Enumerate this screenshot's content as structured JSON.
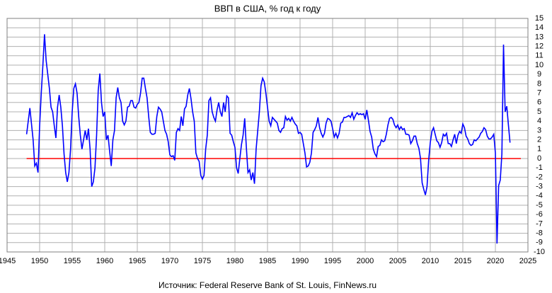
{
  "chart_data": {
    "type": "line",
    "title": "ВВП в США, % год к году",
    "source": "Источник: Federal Reserve Bank of St. Louis, FinNews.ru",
    "xlim": [
      1945,
      2025
    ],
    "xticks": [
      1945,
      1950,
      1955,
      1960,
      1965,
      1970,
      1975,
      1980,
      1985,
      1990,
      1995,
      2000,
      2005,
      2010,
      2015,
      2020,
      2025
    ],
    "ylim": [
      -10,
      15
    ],
    "yticks": [
      -10,
      -9,
      -8,
      -7,
      -6,
      -5,
      -4,
      -3,
      -2,
      -1,
      0,
      1,
      2,
      3,
      4,
      5,
      6,
      7,
      8,
      9,
      10,
      11,
      12,
      13,
      14,
      15
    ],
    "negative_tick_color": "#ff0000",
    "grid": true,
    "hline": {
      "value": 0,
      "color": "#ff0000"
    },
    "x": [
      1948,
      1948.5,
      1949,
      1949.25,
      1949.5,
      1949.75,
      1950,
      1950.25,
      1950.5,
      1950.75,
      1951,
      1951.25,
      1951.5,
      1951.75,
      1952,
      1952.25,
      1952.5,
      1952.75,
      1953,
      1953.25,
      1953.5,
      1953.75,
      1954,
      1954.25,
      1954.5,
      1954.75,
      1955,
      1955.25,
      1955.5,
      1955.75,
      1956,
      1956.25,
      1956.5,
      1956.75,
      1957,
      1957.25,
      1957.5,
      1957.75,
      1958,
      1958.25,
      1958.5,
      1958.75,
      1959,
      1959.25,
      1959.5,
      1959.75,
      1960,
      1960.25,
      1960.5,
      1960.75,
      1961,
      1961.25,
      1961.5,
      1961.75,
      1962,
      1962.25,
      1962.5,
      1962.75,
      1963,
      1963.25,
      1963.5,
      1963.75,
      1964,
      1964.25,
      1964.5,
      1964.75,
      1965,
      1965.25,
      1965.5,
      1965.75,
      1966,
      1966.25,
      1966.5,
      1966.75,
      1967,
      1967.25,
      1967.5,
      1967.75,
      1968,
      1968.25,
      1968.5,
      1968.75,
      1969,
      1969.25,
      1969.5,
      1969.75,
      1970,
      1970.25,
      1970.5,
      1970.75,
      1971,
      1971.25,
      1971.5,
      1971.75,
      1972,
      1972.25,
      1972.5,
      1972.75,
      1973,
      1973.25,
      1973.5,
      1973.75,
      1974,
      1974.25,
      1974.5,
      1974.75,
      1975,
      1975.25,
      1975.5,
      1975.75,
      1976,
      1976.25,
      1976.5,
      1976.75,
      1977,
      1977.25,
      1977.5,
      1977.75,
      1978,
      1978.25,
      1978.5,
      1978.75,
      1979,
      1979.25,
      1979.5,
      1979.75,
      1980,
      1980.25,
      1980.5,
      1980.75,
      1981,
      1981.25,
      1981.5,
      1981.75,
      1982,
      1982.25,
      1982.5,
      1982.75,
      1983,
      1983.25,
      1983.5,
      1983.75,
      1984,
      1984.25,
      1984.5,
      1984.75,
      1985,
      1985.25,
      1985.5,
      1985.75,
      1986,
      1986.25,
      1986.5,
      1986.75,
      1987,
      1987.25,
      1987.5,
      1987.75,
      1988,
      1988.25,
      1988.5,
      1988.75,
      1989,
      1989.25,
      1989.5,
      1989.75,
      1990,
      1990.25,
      1990.5,
      1990.75,
      1991,
      1991.25,
      1991.5,
      1991.75,
      1992,
      1992.25,
      1992.5,
      1992.75,
      1993,
      1993.25,
      1993.5,
      1993.75,
      1994,
      1994.25,
      1994.5,
      1994.75,
      1995,
      1995.25,
      1995.5,
      1995.75,
      1996,
      1996.25,
      1996.5,
      1996.75,
      1997,
      1997.25,
      1997.5,
      1997.75,
      1998,
      1998.25,
      1998.5,
      1998.75,
      1999,
      1999.25,
      1999.5,
      1999.75,
      2000,
      2000.25,
      2000.5,
      2000.75,
      2001,
      2001.25,
      2001.5,
      2001.75,
      2002,
      2002.25,
      2002.5,
      2002.75,
      2003,
      2003.25,
      2003.5,
      2003.75,
      2004,
      2004.25,
      2004.5,
      2004.75,
      2005,
      2005.25,
      2005.5,
      2005.75,
      2006,
      2006.25,
      2006.5,
      2006.75,
      2007,
      2007.25,
      2007.5,
      2007.75,
      2008,
      2008.25,
      2008.5,
      2008.75,
      2009,
      2009.25,
      2009.5,
      2009.75,
      2010,
      2010.25,
      2010.5,
      2010.75,
      2011,
      2011.25,
      2011.5,
      2011.75,
      2012,
      2012.25,
      2012.5,
      2012.75,
      2013,
      2013.25,
      2013.5,
      2013.75,
      2014,
      2014.25,
      2014.5,
      2014.75,
      2015,
      2015.25,
      2015.5,
      2015.75,
      2016,
      2016.25,
      2016.5,
      2016.75,
      2017,
      2017.25,
      2017.5,
      2017.75,
      2018,
      2018.25,
      2018.5,
      2018.75,
      2019,
      2019.25,
      2019.5,
      2019.75,
      2020,
      2020.25,
      2020.5,
      2020.75,
      2021,
      2021.25,
      2021.5,
      2021.75,
      2022,
      2022.25
    ],
    "series": [
      {
        "name": "ВВП",
        "color": "#0000ff",
        "values": [
          2.6,
          5.4,
          2.0,
          -0.8,
          -0.5,
          -1.5,
          3.5,
          7,
          10,
          13.3,
          10.5,
          9,
          7.5,
          5.5,
          5,
          3.5,
          2.2,
          5.5,
          6.8,
          5.5,
          3.5,
          0.5,
          -1.5,
          -2.5,
          -1.5,
          1,
          5,
          7.5,
          8,
          7,
          4.5,
          2.5,
          1,
          2,
          3,
          2,
          3.2,
          1,
          -3,
          -2.5,
          -1,
          2.5,
          7.3,
          9.1,
          6,
          4.5,
          5,
          2,
          2.5,
          0.8,
          -0.8,
          2,
          3,
          6.5,
          7.6,
          6.5,
          6,
          4,
          3.6,
          4,
          5.5,
          5.6,
          6.2,
          6.2,
          5.5,
          5.4,
          5.8,
          6,
          7,
          8.6,
          8.6,
          7.5,
          6.5,
          4.5,
          2.8,
          2.6,
          2.6,
          2.7,
          4.5,
          5.5,
          5.3,
          5,
          4,
          3,
          2.6,
          1.8,
          0.4,
          0.2,
          0.3,
          -0.2,
          2.8,
          3.2,
          3,
          4.5,
          3.5,
          5.3,
          5.6,
          6.8,
          7.5,
          6.4,
          5,
          4,
          0.6,
          0,
          -0.3,
          -1.8,
          -2.2,
          -1.8,
          1,
          2.5,
          6.2,
          6.5,
          5,
          4.4,
          4,
          5.2,
          6,
          5,
          4.5,
          6,
          5,
          6.7,
          6.5,
          2.7,
          2.5,
          1.8,
          1.2,
          -1,
          -1.6,
          0,
          1.5,
          2.5,
          4.3,
          1.2,
          -1.5,
          -1.2,
          -2.3,
          -1.5,
          -2.7,
          1,
          3,
          5,
          7.8,
          8.6,
          8.2,
          7,
          5.5,
          4,
          3.5,
          4.4,
          4.2,
          4,
          3.8,
          3,
          2.8,
          3.2,
          3.3,
          4.5,
          4.1,
          4.3,
          4,
          4.4,
          4,
          3.7,
          3.5,
          2.7,
          2.8,
          2.6,
          1.6,
          0.6,
          -0.9,
          -0.8,
          -0.4,
          0.6,
          2.8,
          3.1,
          3.5,
          4.4,
          3.3,
          2.7,
          2.3,
          2.7,
          3.8,
          4.3,
          4.2,
          4,
          3.2,
          2.3,
          2.7,
          2.2,
          2.7,
          3.8,
          3.9,
          4.4,
          4.4,
          4.5,
          4.6,
          4.4,
          4.9,
          4.2,
          4.6,
          4.9,
          4.7,
          4.8,
          4.7,
          4.8,
          4.2,
          5.2,
          4.1,
          2.9,
          2.3,
          1,
          0.5,
          0.2,
          1.3,
          1.4,
          2,
          1.8,
          1.9,
          2.6,
          3.6,
          4.3,
          4.4,
          4.2,
          3.6,
          3.3,
          3.6,
          3.1,
          3.4,
          3.1,
          3.2,
          2.6,
          2.6,
          2.5,
          1.6,
          1.9,
          2.4,
          2.4,
          1.6,
          1.1,
          0,
          -2.6,
          -3.3,
          -3.9,
          -3,
          -0.2,
          1.7,
          2.9,
          3.3,
          2.6,
          1.9,
          1.7,
          1.2,
          1.7,
          2.6,
          2.4,
          2.7,
          1.6,
          1.6,
          1.3,
          2,
          2.6,
          1.6,
          2.5,
          2.9,
          2.7,
          3.7,
          3.3,
          2.4,
          2.1,
          1.6,
          1.4,
          1.5,
          2,
          1.9,
          2.1,
          2.3,
          2.7,
          2.9,
          3.3,
          3.1,
          2.4,
          2.1,
          2.1,
          2.3,
          2.6,
          0.6,
          -9.1,
          -2.9,
          -2.3,
          0.5,
          12.2,
          5,
          5.6,
          3.6,
          1.7
        ]
      }
    ]
  }
}
